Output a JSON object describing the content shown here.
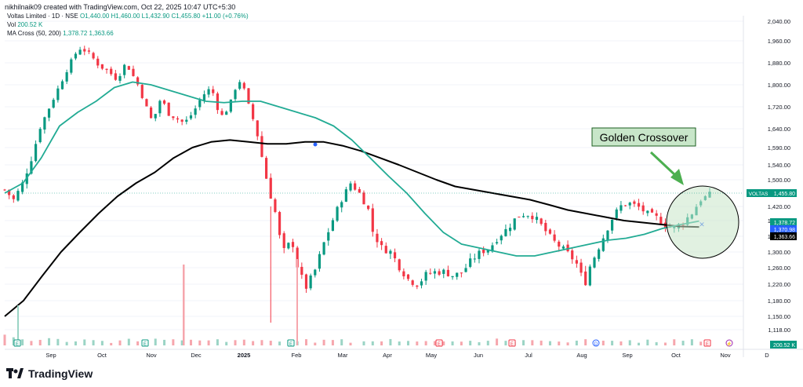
{
  "header": {
    "credit": "nikhilnaik09 created with TradingView.com, Oct 22, 2025 10:47 UTC+5:30",
    "symbol_line": "Voltas Limited · 1D · NSE",
    "ohlc": "O1,440.00 H1,460.00 L1,432.90 C1,455.80 +11.00 (+0.76%)",
    "vol_label": "Vol",
    "vol_value": "200.52 K",
    "ma_label": "MA Cross (50, 200)",
    "ma_values": "1,378.72  1,363.66"
  },
  "brand": {
    "name": "TradingView"
  },
  "chart_data": {
    "type": "candlestick",
    "symbol": "VOLTAS",
    "x_ticks": [
      "Sep",
      "Oct",
      "Nov",
      "Dec",
      "2025",
      "Feb",
      "Mar",
      "Apr",
      "May",
      "Jun",
      "Jul",
      "Aug",
      "Sep",
      "Oct",
      "Nov",
      "D"
    ],
    "y_ticks": [
      2040,
      1960,
      1880,
      1800,
      1720,
      1640,
      1590,
      1540,
      1500,
      1420,
      1380,
      1340,
      1300,
      1260,
      1220,
      1180,
      1150,
      1118
    ],
    "y_tick_labels": [
      "2,040.00",
      "1,960.00",
      "1,880.00",
      "1,800.00",
      "1,720.00",
      "1,640.00",
      "1,590.00",
      "1,540.00",
      "1,500.00",
      "1,420.00",
      "1,380.00",
      "1,340.00",
      "1,300.00",
      "1,260.00",
      "1,220.00",
      "1,180.00",
      "1,150.00",
      "1,118.00"
    ],
    "price_tags": [
      {
        "label": "VOLTAS",
        "value": "1,455.80",
        "color": "#089981"
      },
      {
        "label": "",
        "value": "1,378.72",
        "color": "#089981"
      },
      {
        "label": "",
        "value": "1,370.98",
        "color": "#2962ff"
      },
      {
        "label": "",
        "value": "1,363.66",
        "color": "#000000"
      }
    ],
    "volume_tag": "200.52 K",
    "annotation": "Golden Crossover",
    "close_path": [
      [
        0,
        1470
      ],
      [
        2,
        1440
      ],
      [
        4,
        1490
      ],
      [
        6,
        1560
      ],
      [
        8,
        1650
      ],
      [
        10,
        1720
      ],
      [
        12,
        1790
      ],
      [
        14,
        1860
      ],
      [
        16,
        1920
      ],
      [
        17,
        1935
      ],
      [
        19,
        1910
      ],
      [
        21,
        1870
      ],
      [
        23,
        1850
      ],
      [
        25,
        1820
      ],
      [
        27,
        1880
      ],
      [
        28,
        1850
      ],
      [
        30,
        1790
      ],
      [
        31,
        1740
      ],
      [
        32,
        1700
      ],
      [
        33,
        1660
      ],
      [
        34,
        1720
      ],
      [
        35,
        1760
      ],
      [
        36,
        1700
      ],
      [
        38,
        1680
      ],
      [
        40,
        1660
      ],
      [
        42,
        1700
      ],
      [
        44,
        1760
      ],
      [
        46,
        1790
      ],
      [
        47,
        1740
      ],
      [
        48,
        1680
      ],
      [
        50,
        1720
      ],
      [
        52,
        1820
      ],
      [
        53,
        1800
      ],
      [
        54,
        1740
      ],
      [
        55,
        1690
      ],
      [
        56,
        1640
      ],
      [
        57,
        1580
      ],
      [
        58,
        1520
      ],
      [
        59,
        1460
      ],
      [
        60,
        1420
      ],
      [
        61,
        1350
      ],
      [
        62,
        1300
      ],
      [
        64,
        1330
      ],
      [
        65,
        1270
      ],
      [
        67,
        1210
      ],
      [
        69,
        1250
      ],
      [
        71,
        1320
      ],
      [
        73,
        1380
      ],
      [
        75,
        1440
      ],
      [
        77,
        1490
      ],
      [
        79,
        1460
      ],
      [
        81,
        1410
      ],
      [
        82,
        1350
      ],
      [
        84,
        1310
      ],
      [
        86,
        1300
      ],
      [
        88,
        1260
      ],
      [
        90,
        1230
      ],
      [
        92,
        1220
      ],
      [
        94,
        1245
      ],
      [
        96,
        1250
      ],
      [
        98,
        1250
      ],
      [
        100,
        1240
      ],
      [
        102,
        1250
      ],
      [
        104,
        1280
      ],
      [
        106,
        1300
      ],
      [
        108,
        1310
      ],
      [
        110,
        1340
      ],
      [
        112,
        1360
      ],
      [
        114,
        1390
      ],
      [
        116,
        1400
      ],
      [
        118,
        1390
      ],
      [
        120,
        1360
      ],
      [
        122,
        1330
      ],
      [
        124,
        1310
      ],
      [
        126,
        1290
      ],
      [
        128,
        1260
      ],
      [
        129,
        1210
      ],
      [
        130,
        1255
      ],
      [
        131,
        1280
      ],
      [
        133,
        1330
      ],
      [
        135,
        1380
      ],
      [
        137,
        1420
      ],
      [
        139,
        1430
      ],
      [
        141,
        1420
      ],
      [
        143,
        1400
      ],
      [
        145,
        1390
      ],
      [
        147,
        1370
      ],
      [
        149,
        1360
      ],
      [
        151,
        1375
      ],
      [
        153,
        1400
      ],
      [
        155,
        1440
      ],
      [
        157,
        1455.8
      ]
    ],
    "ma50": [
      1460,
      1490,
      1560,
      1650,
      1700,
      1740,
      1790,
      1810,
      1800,
      1780,
      1760,
      1740,
      1735,
      1740,
      1740,
      1720,
      1700,
      1680,
      1650,
      1610,
      1560,
      1510,
      1460,
      1400,
      1350,
      1320,
      1310,
      1300,
      1290,
      1290,
      1300,
      1310,
      1320,
      1330,
      1335,
      1345,
      1360,
      1370,
      1378.72
    ],
    "ma200": [
      1150,
      1180,
      1240,
      1300,
      1350,
      1400,
      1450,
      1490,
      1520,
      1560,
      1590,
      1605,
      1610,
      1605,
      1600,
      1600,
      1605,
      1605,
      1595,
      1580,
      1560,
      1540,
      1520,
      1500,
      1480,
      1470,
      1460,
      1450,
      1440,
      1425,
      1410,
      1400,
      1390,
      1380,
      1375,
      1370,
      1365,
      1363.66
    ],
    "volume": [
      1.2,
      0.8,
      0.6,
      0.5,
      0.5,
      0.6,
      0.5,
      0.4,
      0.4,
      0.5,
      0.4,
      0.5,
      0.3,
      0.4,
      0.5,
      0.4,
      0.3,
      0.6,
      0.4,
      0.5,
      0.3,
      0.4,
      0.4,
      0.3,
      0.5,
      0.4,
      0.3,
      0.4,
      0.3,
      0.5,
      0.4,
      0.3,
      0.4,
      0.5,
      0.4,
      0.3,
      0.4,
      0.5,
      0.4,
      0.3,
      0.4,
      0.3,
      0.4,
      0.5,
      0.4,
      0.3,
      0.4,
      0.4,
      0.3,
      0.5,
      0.4,
      0.3,
      0.4,
      0.3,
      0.4,
      0.5,
      0.3,
      0.4,
      0.4,
      0.3,
      0.4,
      0.5,
      0.4,
      0.3,
      0.4,
      0.4,
      0.3,
      0.5,
      0.4,
      0.3,
      0.4,
      0.3,
      0.4,
      0.4,
      0.3,
      0.5,
      0.3,
      0.4,
      0.3,
      0.4
    ],
    "event_markers": [
      {
        "x": 4,
        "icon": "E",
        "color": "#089981"
      },
      {
        "x": 26,
        "icon": "E",
        "color": "#089981"
      },
      {
        "x": 43,
        "icon": "E",
        "color": "#089981"
      },
      {
        "x": 57,
        "icon": "E",
        "color": "#f23645"
      },
      {
        "x": 87,
        "icon": "E",
        "color": "#f23645"
      },
      {
        "x": 101,
        "icon": "D",
        "color": "#2962ff"
      },
      {
        "x": 119,
        "icon": "E",
        "color": "#f23645"
      },
      {
        "x": 146,
        "icon": "⚡",
        "color": "#9c27b0"
      },
      {
        "x": 150,
        "icon": "E",
        "color": "#9c27b0"
      }
    ]
  },
  "colors": {
    "up": "#089981",
    "down": "#f23645",
    "ma50": "#22ab94",
    "ma200": "#000000",
    "annotation_bg": "#c8e6c9",
    "annotation_border": "#1b5e20",
    "arrow": "#4caf50"
  }
}
